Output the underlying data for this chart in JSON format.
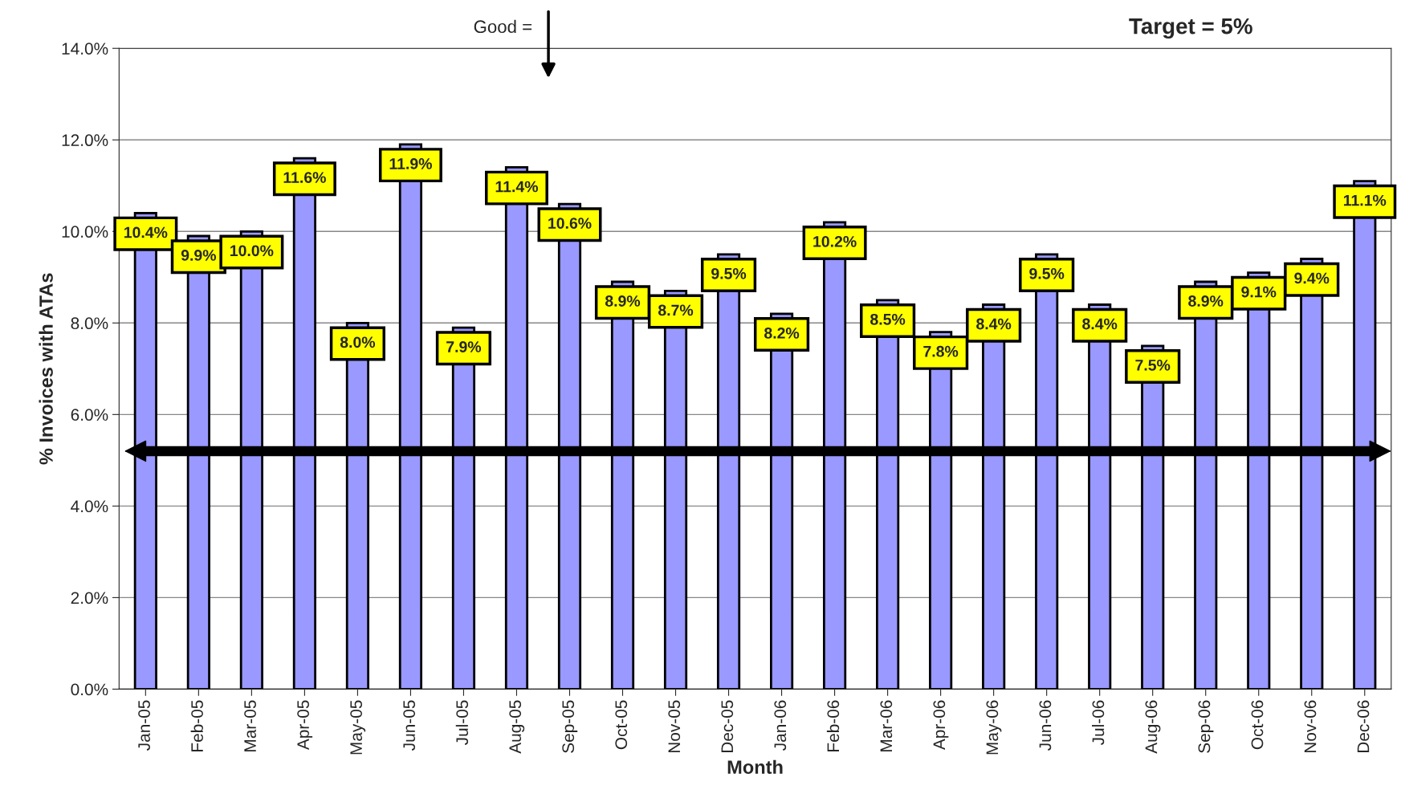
{
  "chart_data": {
    "type": "bar",
    "xlabel": "Month",
    "ylabel": "% Invoices with ATAs",
    "categories": [
      "Jan-05",
      "Feb-05",
      "Mar-05",
      "Apr-05",
      "May-05",
      "Jun-05",
      "Jul-05",
      "Aug-05",
      "Sep-05",
      "Oct-05",
      "Nov-05",
      "Dec-05",
      "Jan-06",
      "Feb-06",
      "Mar-06",
      "Apr-06",
      "May-06",
      "Jun-06",
      "Jul-06",
      "Aug-06",
      "Sep-06",
      "Oct-06",
      "Nov-06",
      "Dec-06"
    ],
    "values": [
      10.4,
      9.9,
      10.0,
      11.6,
      8.0,
      11.9,
      7.9,
      11.4,
      10.6,
      8.9,
      8.7,
      9.5,
      8.2,
      10.2,
      8.5,
      7.8,
      8.4,
      9.5,
      8.4,
      7.5,
      8.9,
      9.1,
      9.4,
      11.1
    ],
    "value_labels": [
      "10.4%",
      "9.9%",
      "10.0%",
      "11.6%",
      "8.0%",
      "11.9%",
      "7.9%",
      "11.4%",
      "10.6%",
      "8.9%",
      "8.7%",
      "9.5%",
      "8.2%",
      "10.2%",
      "8.5%",
      "7.8%",
      "8.4%",
      "9.5%",
      "8.4%",
      "7.5%",
      "8.9%",
      "9.1%",
      "9.4%",
      "11.1%"
    ],
    "color": "#9999ff",
    "ylim": [
      0,
      14
    ],
    "yticks": [
      {
        "value": 0,
        "label": "0.0%"
      },
      {
        "value": 2,
        "label": "2.0%"
      },
      {
        "value": 4,
        "label": "4.0%"
      },
      {
        "value": 6,
        "label": "6.0%"
      },
      {
        "value": 8,
        "label": "8.0%"
      },
      {
        "value": 10,
        "label": "10.0%"
      },
      {
        "value": 12,
        "label": "12.0%"
      },
      {
        "value": 14,
        "label": "14.0%"
      }
    ],
    "grid": "y",
    "ref_lines": [
      {
        "axis": "y",
        "value": 5.2,
        "color": "#000000"
      }
    ],
    "annotations": [
      "Target = 5%",
      "Good ="
    ]
  }
}
